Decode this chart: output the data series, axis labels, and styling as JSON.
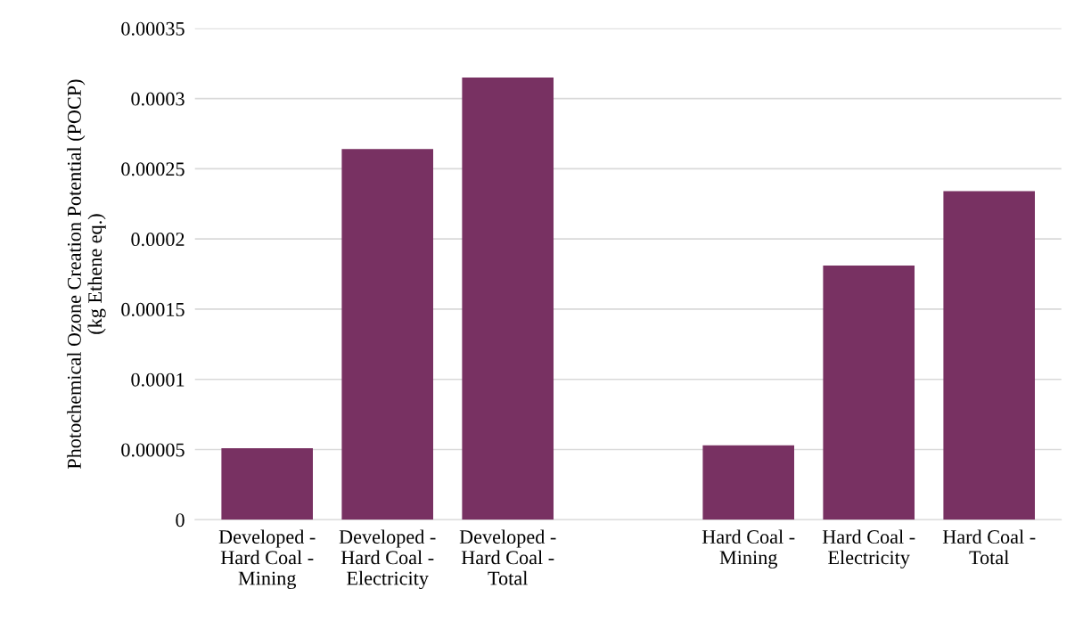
{
  "chart_data": {
    "type": "bar",
    "ylabel": "Photochemical Ozone Creation Potential (POCP)\n(kg Ethene eq.)",
    "categories": [
      "Developed -\nHard Coal -\nMining",
      "Developed -\nHard Coal -\nElectricity",
      "Developed -\nHard Coal -\nTotal",
      null,
      "Hard Coal -\nMining",
      "Hard Coal -\nElectricity",
      "Hard Coal -\nTotal"
    ],
    "values": [
      5.1e-05,
      0.000264,
      0.000315,
      null,
      5.3e-05,
      0.000181,
      0.000234
    ],
    "color": "#783162",
    "ylim": [
      0,
      0.00035
    ],
    "yticks": [
      0,
      {
        "value": 5e-05,
        "label": "0.00005"
      },
      {
        "value": 0.0001,
        "label": "0.0001"
      },
      {
        "value": 0.00015,
        "label": "0.00015"
      },
      {
        "value": 0.0002,
        "label": "0.0002"
      },
      {
        "value": 0.00025,
        "label": "0.00025"
      },
      {
        "value": 0.0003,
        "label": "0.0003"
      },
      {
        "value": 0.00035,
        "label": "0.00035"
      }
    ],
    "grid": "y"
  }
}
